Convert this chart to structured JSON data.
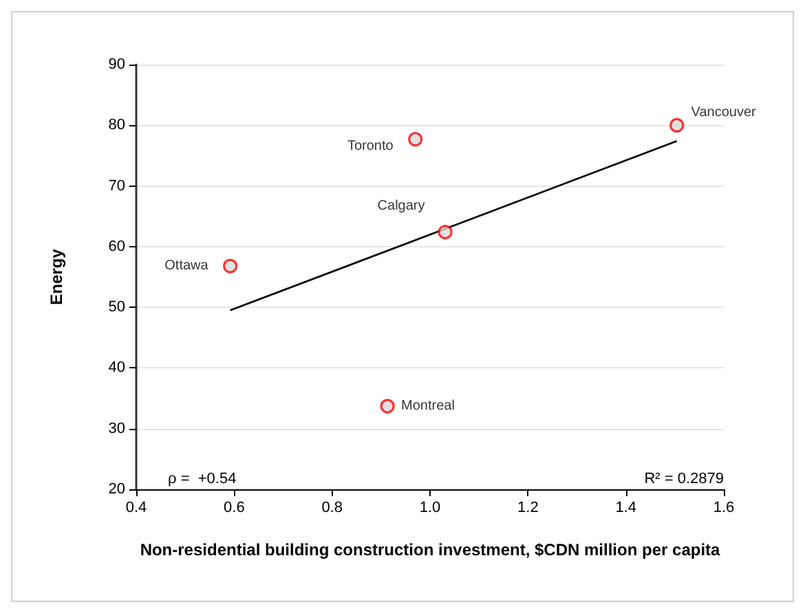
{
  "chart_data": {
    "type": "scatter",
    "xlabel": "Non-residential building construction investment, $CDN million per capita",
    "ylabel": "Energy",
    "x": [
      0.592,
      0.913,
      0.97,
      1.031,
      1.504
    ],
    "series": [
      {
        "color": "#ff0000",
        "marker": "circle",
        "values": [
          56.8,
          33.7,
          77.7,
          62.4,
          80.0
        ]
      },
      {
        "type": "line",
        "color": "#000000",
        "marker": "none",
        "x": [
          0.592,
          1.504
        ],
        "values": [
          49.5,
          77.4
        ]
      }
    ],
    "grid": "y",
    "xlim": [
      0.4,
      1.6
    ],
    "xticks": [
      0.4,
      0.6,
      0.8,
      {
        "value": 1,
        "label": "1.0"
      },
      1.2,
      1.4,
      1.6
    ],
    "ylim": [
      20,
      90
    ],
    "yticks": [
      20,
      30,
      40,
      50,
      60,
      70,
      80,
      90
    ],
    "annotations": [
      {
        "text": "Ottawa",
        "x": 0.592,
        "y": 56.8
      },
      {
        "text": "Montreal",
        "x": 0.913,
        "y": 33.7
      },
      {
        "text": "Toronto",
        "x": 0.97,
        "y": 77.7
      },
      {
        "text": "Calgary",
        "x": 1.031,
        "y": 62.4
      },
      {
        "text": "Vancouver",
        "x": 1.504,
        "y": 80.0
      },
      "ρ =  +0.54",
      "R² = 0.2879"
    ]
  }
}
